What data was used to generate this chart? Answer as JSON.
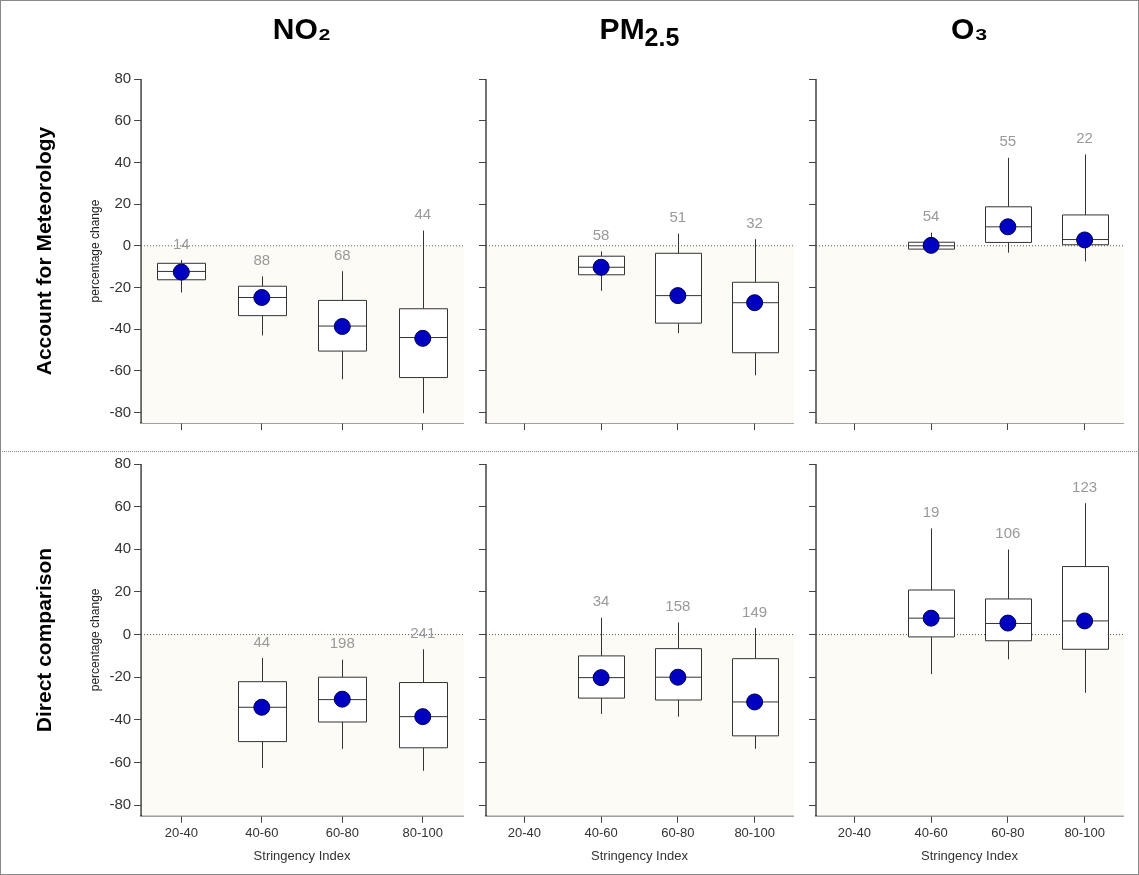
{
  "chart_data": [
    {
      "type": "box",
      "title": "NO₂",
      "ylabel": "percentage change",
      "categories": [
        "20-40",
        "40-60",
        "60-80",
        "80-100"
      ],
      "ylim": [
        -85,
        80
      ],
      "yticks": [
        -80,
        -60,
        -40,
        -20,
        0,
        20,
        40,
        60,
        80
      ],
      "tick_labels": "y",
      "marker": "circle",
      "series": [
        {
          "type": "box",
          "color": "#ffffff",
          "boxes": [
            {
              "low": -22.4,
              "q1": -16.3,
              "median": -12.3,
              "q3": -8.4,
              "high": -6.8
            },
            {
              "low": -43,
              "q1": -33.5,
              "median": -24.8,
              "q3": -19.4,
              "high": -14.7
            },
            {
              "low": -64,
              "q1": -50.5,
              "median": -38.5,
              "q3": -26.2,
              "high": -12.2
            },
            {
              "low": -80.3,
              "q1": -63.2,
              "median": -44,
              "q3": -30.2,
              "high": 7.3
            }
          ]
        },
        {
          "type": "scatter",
          "color": "#0000c0",
          "x": [
            "20-40",
            "40-60",
            "60-80",
            "80-100"
          ],
          "values": [
            -12.6,
            -24.8,
            -38.7,
            -44.4
          ]
        }
      ],
      "bands": [
        {
          "axis": "y",
          "from": -85,
          "to": 0,
          "color": "#fcfbf5"
        }
      ],
      "ref_lines": [
        {
          "axis": "y",
          "value": 0,
          "line_style": "dotted"
        }
      ],
      "annotations": [
        "Account for Meteorology",
        "14",
        "88",
        "68",
        "44"
      ]
    },
    {
      "type": "box",
      "title": "PM$_{2.5}$",
      "categories": [
        "20-40",
        "40-60",
        "60-80",
        "80-100"
      ],
      "ylim": [
        -85,
        80
      ],
      "yticks": [
        -80,
        -60,
        -40,
        -20,
        0,
        20,
        40,
        60,
        80
      ],
      "tick_labels": false,
      "marker": "circle",
      "series": [
        {
          "type": "box",
          "color": "#ffffff",
          "boxes": [
            null,
            {
              "low": -21.6,
              "q1": -13.9,
              "median": -10.3,
              "q3": -5,
              "high": -2.7
            },
            {
              "low": -41.9,
              "q1": -37.1,
              "median": -23.9,
              "q3": -3.6,
              "high": 5.8
            },
            {
              "low": -62.1,
              "q1": -51.3,
              "median": -27.3,
              "q3": -17.5,
              "high": 3.2
            }
          ]
        },
        {
          "type": "scatter",
          "color": "#0000c0",
          "x": [
            "40-60",
            "60-80",
            "80-100"
          ],
          "values": [
            -10.3,
            -23.9,
            -27.3
          ]
        }
      ],
      "bands": [
        {
          "axis": "y",
          "from": -85,
          "to": 0,
          "color": "#fcfbf5"
        }
      ],
      "ref_lines": [
        {
          "axis": "y",
          "value": 0,
          "line_style": "dotted"
        }
      ],
      "annotations": [
        "58",
        "51",
        "32"
      ]
    },
    {
      "type": "box",
      "title": "O₃",
      "categories": [
        "20-40",
        "40-60",
        "60-80",
        "80-100"
      ],
      "ylim": [
        -85,
        80
      ],
      "yticks": [
        -80,
        -60,
        -40,
        -20,
        0,
        20,
        40,
        60,
        80
      ],
      "tick_labels": false,
      "marker": "circle",
      "series": [
        {
          "type": "box",
          "color": "#ffffff",
          "boxes": [
            null,
            {
              "low": -1.6,
              "q1": -1.6,
              "median": 0,
              "q3": 1.7,
              "high": 6.3
            },
            {
              "low": -3.3,
              "q1": 1.6,
              "median": 9.1,
              "q3": 18.7,
              "high": 42.2
            },
            {
              "low": -7.5,
              "q1": 0.5,
              "median": 3,
              "q3": 14.8,
              "high": 43.8
            }
          ]
        },
        {
          "type": "scatter",
          "color": "#0000c0",
          "x": [
            "40-60",
            "60-80",
            "80-100"
          ],
          "values": [
            0.2,
            9.1,
            2.8
          ]
        }
      ],
      "bands": [
        {
          "axis": "y",
          "from": -85,
          "to": 0,
          "color": "#fcfbf5"
        }
      ],
      "ref_lines": [
        {
          "axis": "y",
          "value": 0,
          "line_style": "dotted"
        }
      ],
      "annotations": [
        "54",
        "55",
        "22"
      ]
    },
    {
      "type": "box",
      "xlabel": "Stringency Index",
      "ylabel": "percentage change",
      "categories": [
        "20-40",
        "40-60",
        "60-80",
        "80-100"
      ],
      "ylim": [
        -85,
        80
      ],
      "yticks": [
        -80,
        -60,
        -40,
        -20,
        0,
        20,
        40,
        60,
        80
      ],
      "marker": "circle",
      "series": [
        {
          "type": "box",
          "color": "#ffffff",
          "boxes": [
            null,
            {
              "low": -62.6,
              "q1": -50.2,
              "median": -34.1,
              "q3": -22.1,
              "high": -11
            },
            {
              "low": -53.6,
              "q1": -41,
              "median": -30.5,
              "q3": -20,
              "high": -11.8
            },
            {
              "low": -63.9,
              "q1": -53.1,
              "median": -38.5,
              "q3": -22.5,
              "high": -6.9
            }
          ]
        },
        {
          "type": "scatter",
          "color": "#0000c0",
          "x": [
            "40-60",
            "60-80",
            "80-100"
          ],
          "values": [
            -34.1,
            -30.3,
            -38.5
          ]
        }
      ],
      "bands": [
        {
          "axis": "y",
          "from": -85,
          "to": 0,
          "color": "#fcfbf5"
        }
      ],
      "ref_lines": [
        {
          "axis": "y",
          "value": 0,
          "line_style": "dotted"
        }
      ],
      "annotations": [
        "Direct comparison",
        "44",
        "198",
        "241"
      ]
    },
    {
      "type": "box",
      "xlabel": "Stringency Index",
      "categories": [
        "20-40",
        "40-60",
        "60-80",
        "80-100"
      ],
      "ylim": [
        -85,
        80
      ],
      "yticks": [
        -80,
        -60,
        -40,
        -20,
        0,
        20,
        40,
        60,
        80
      ],
      "tick_labels": "x",
      "marker": "circle",
      "series": [
        {
          "type": "box",
          "color": "#ffffff",
          "boxes": [
            null,
            {
              "low": -37.2,
              "q1": -29.8,
              "median": -20.2,
              "q3": -10,
              "high": 7.9
            },
            {
              "low": -38.5,
              "q1": -30.7,
              "median": -20,
              "q3": -6.6,
              "high": 5.7
            },
            {
              "low": -53.6,
              "q1": -47.5,
              "median": -31.6,
              "q3": -11.3,
              "high": 3.1
            }
          ]
        },
        {
          "type": "scatter",
          "color": "#0000c0",
          "x": [
            "40-60",
            "60-80",
            "80-100"
          ],
          "values": [
            -20.2,
            -20,
            -31.6
          ]
        }
      ],
      "bands": [
        {
          "axis": "y",
          "from": -85,
          "to": 0,
          "color": "#fcfbf5"
        }
      ],
      "ref_lines": [
        {
          "axis": "y",
          "value": 0,
          "line_style": "dotted"
        }
      ],
      "annotations": [
        "34",
        "158",
        "149"
      ]
    },
    {
      "type": "box",
      "xlabel": "Stringency Index",
      "categories": [
        "20-40",
        "40-60",
        "60-80",
        "80-100"
      ],
      "ylim": [
        -85,
        80
      ],
      "yticks": [
        -80,
        -60,
        -40,
        -20,
        0,
        20,
        40,
        60,
        80
      ],
      "tick_labels": "x",
      "marker": "circle",
      "series": [
        {
          "type": "box",
          "color": "#ffffff",
          "boxes": [
            null,
            {
              "low": -18.5,
              "q1": -1.1,
              "median": 7.7,
              "q3": 20.9,
              "high": 49.8
            },
            {
              "low": -11.6,
              "q1": -2.9,
              "median": 5.2,
              "q3": 16.7,
              "high": 39.9
            },
            {
              "low": -27.3,
              "q1": -6.9,
              "median": 6.4,
              "q3": 31.9,
              "high": 61.6
            }
          ]
        },
        {
          "type": "scatter",
          "color": "#0000c0",
          "x": [
            "40-60",
            "60-80",
            "80-100"
          ],
          "values": [
            7.7,
            5.4,
            6.4
          ]
        }
      ],
      "bands": [
        {
          "axis": "y",
          "from": -85,
          "to": 0,
          "color": "#fcfbf5"
        }
      ],
      "ref_lines": [
        {
          "axis": "y",
          "value": 0,
          "line_style": "dotted"
        }
      ],
      "annotations": [
        "19",
        "106",
        "123"
      ]
    }
  ]
}
